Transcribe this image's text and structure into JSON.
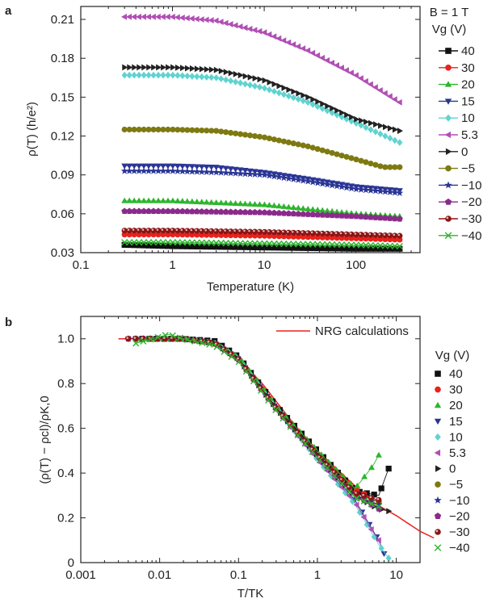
{
  "chart_data": [
    {
      "panel_label": "a",
      "type": "scatter",
      "xlabel": "Temperature (K)",
      "ylabel": "ρ(T) (h/e²)",
      "x_scale": "log",
      "xlim": [
        0.1,
        500
      ],
      "ylim": [
        0.03,
        0.22
      ],
      "x_ticks": [
        {
          "value": 0.1,
          "label": "0.1"
        },
        {
          "value": 1,
          "label": "1"
        },
        {
          "value": 10,
          "label": "10"
        },
        {
          "value": 100,
          "label": "100"
        }
      ],
      "y_ticks": [
        {
          "value": 0.03,
          "label": "0.03"
        },
        {
          "value": 0.06,
          "label": "0.06"
        },
        {
          "value": 0.09,
          "label": "0.09"
        },
        {
          "value": 0.12,
          "label": "0.12"
        },
        {
          "value": 0.15,
          "label": "0.15"
        },
        {
          "value": 0.18,
          "label": "0.18"
        },
        {
          "value": 0.21,
          "label": "0.21"
        }
      ],
      "legend_header": "B = 1 T",
      "legend_title": "Vg (V)",
      "legend_position": "right",
      "grid": false,
      "series": [
        {
          "name": "40",
          "color": "#111111",
          "marker": "square",
          "points": [
            [
              0.3,
              0.036
            ],
            [
              1,
              0.035
            ],
            [
              10,
              0.034
            ],
            [
              100,
              0.033
            ],
            [
              300,
              0.033
            ]
          ]
        },
        {
          "name": "30",
          "color": "#e8221c",
          "marker": "circle",
          "points": [
            [
              0.3,
              0.044
            ],
            [
              1,
              0.044
            ],
            [
              10,
              0.043
            ],
            [
              100,
              0.041
            ],
            [
              300,
              0.04
            ]
          ]
        },
        {
          "name": "20",
          "color": "#2db52d",
          "marker": "triangle-up",
          "points": [
            [
              0.3,
              0.07
            ],
            [
              1,
              0.07
            ],
            [
              10,
              0.067
            ],
            [
              100,
              0.06
            ],
            [
              300,
              0.058
            ]
          ]
        },
        {
          "name": "15",
          "color": "#2a3595",
          "marker": "triangle-down",
          "points": [
            [
              0.3,
              0.097
            ],
            [
              1,
              0.097
            ],
            [
              3,
              0.096
            ],
            [
              10,
              0.092
            ],
            [
              30,
              0.087
            ],
            [
              100,
              0.081
            ],
            [
              300,
              0.078
            ]
          ]
        },
        {
          "name": "10",
          "color": "#5fd3d0",
          "marker": "diamond",
          "points": [
            [
              0.3,
              0.167
            ],
            [
              1,
              0.167
            ],
            [
              3,
              0.165
            ],
            [
              10,
              0.157
            ],
            [
              30,
              0.146
            ],
            [
              100,
              0.13
            ],
            [
              300,
              0.115
            ]
          ]
        },
        {
          "name": "5.3",
          "color": "#b04fb5",
          "marker": "triangle-left",
          "points": [
            [
              0.3,
              0.212
            ],
            [
              1,
              0.212
            ],
            [
              3,
              0.209
            ],
            [
              10,
              0.2
            ],
            [
              30,
              0.186
            ],
            [
              100,
              0.167
            ],
            [
              300,
              0.146
            ]
          ]
        },
        {
          "name": "0",
          "color": "#222222",
          "marker": "triangle-right",
          "points": [
            [
              0.3,
              0.173
            ],
            [
              1,
              0.173
            ],
            [
              3,
              0.171
            ],
            [
              10,
              0.163
            ],
            [
              30,
              0.15
            ],
            [
              100,
              0.133
            ],
            [
              300,
              0.124
            ]
          ]
        },
        {
          "name": "−5",
          "color": "#7e7a12",
          "marker": "circle",
          "points": [
            [
              0.3,
              0.125
            ],
            [
              1,
              0.125
            ],
            [
              3,
              0.124
            ],
            [
              10,
              0.119
            ],
            [
              30,
              0.112
            ],
            [
              100,
              0.102
            ],
            [
              200,
              0.096
            ],
            [
              300,
              0.096
            ]
          ]
        },
        {
          "name": "−10",
          "color": "#2a3595",
          "marker": "star",
          "points": [
            [
              0.3,
              0.093
            ],
            [
              1,
              0.093
            ],
            [
              3,
              0.092
            ],
            [
              10,
              0.09
            ],
            [
              30,
              0.085
            ],
            [
              100,
              0.079
            ],
            [
              300,
              0.076
            ]
          ]
        },
        {
          "name": "−20",
          "color": "#8a2a8a",
          "marker": "pentagon",
          "points": [
            [
              0.3,
              0.062
            ],
            [
              1,
              0.062
            ],
            [
              10,
              0.061
            ],
            [
              100,
              0.058
            ],
            [
              300,
              0.056
            ]
          ]
        },
        {
          "name": "−30",
          "color": "#8c1414",
          "marker": "circle-dot",
          "points": [
            [
              0.3,
              0.047
            ],
            [
              1,
              0.047
            ],
            [
              10,
              0.046
            ],
            [
              100,
              0.044
            ],
            [
              300,
              0.043
            ]
          ]
        },
        {
          "name": "−40",
          "color": "#2db52d",
          "marker": "x",
          "points": [
            [
              0.3,
              0.038
            ],
            [
              1,
              0.038
            ],
            [
              10,
              0.037
            ],
            [
              100,
              0.036
            ],
            [
              300,
              0.035
            ]
          ]
        }
      ]
    },
    {
      "panel_label": "b",
      "type": "scatter",
      "xlabel": "T/TK",
      "ylabel": "(ρ(T) − ρcl)/ρK,0",
      "x_scale": "log",
      "xlim": [
        0.001,
        20
      ],
      "ylim": [
        0,
        1.1
      ],
      "x_ticks": [
        {
          "value": 0.001,
          "label": "0.001"
        },
        {
          "value": 0.01,
          "label": "0.01"
        },
        {
          "value": 0.1,
          "label": "0.1"
        },
        {
          "value": 1,
          "label": "1"
        },
        {
          "value": 10,
          "label": "10"
        }
      ],
      "y_ticks": [
        {
          "value": 0,
          "label": "0"
        },
        {
          "value": 0.2,
          "label": "0.2"
        },
        {
          "value": 0.4,
          "label": "0.4"
        },
        {
          "value": 0.6,
          "label": "0.6"
        },
        {
          "value": 0.8,
          "label": "0.8"
        },
        {
          "value": 1.0,
          "label": "1.0"
        }
      ],
      "legend_title": "Vg (V)",
      "legend_position": "right",
      "grid": false,
      "nrg_curve": {
        "name": "NRG calculations",
        "color": "#e8221c",
        "points": [
          [
            0.003,
            1.0
          ],
          [
            0.01,
            1.0
          ],
          [
            0.03,
            0.99
          ],
          [
            0.06,
            0.96
          ],
          [
            0.1,
            0.91
          ],
          [
            0.2,
            0.8
          ],
          [
            0.5,
            0.62
          ],
          [
            1,
            0.5
          ],
          [
            2,
            0.4
          ],
          [
            5,
            0.27
          ],
          [
            10,
            0.21
          ],
          [
            20,
            0.14
          ],
          [
            30,
            0.11
          ]
        ]
      },
      "series": [
        {
          "name": "40",
          "color": "#111111",
          "marker": "square",
          "points": [
            [
              0.006,
              1.0
            ],
            [
              0.02,
              1.0
            ],
            [
              0.05,
              0.99
            ],
            [
              0.1,
              0.92
            ],
            [
              0.3,
              0.7
            ],
            [
              1,
              0.5
            ],
            [
              3,
              0.32
            ],
            [
              6,
              0.3
            ],
            [
              8,
              0.42
            ]
          ]
        },
        {
          "name": "30",
          "color": "#e8221c",
          "marker": "circle",
          "points": [
            [
              0.005,
              1.0
            ],
            [
              0.02,
              1.0
            ],
            [
              0.05,
              0.98
            ],
            [
              0.1,
              0.91
            ],
            [
              0.3,
              0.69
            ],
            [
              1,
              0.49
            ],
            [
              3,
              0.33
            ],
            [
              6,
              0.27
            ]
          ]
        },
        {
          "name": "20",
          "color": "#2db52d",
          "marker": "triangle-up",
          "points": [
            [
              0.006,
              1.0
            ],
            [
              0.02,
              1.0
            ],
            [
              0.05,
              0.98
            ],
            [
              0.1,
              0.92
            ],
            [
              0.3,
              0.7
            ],
            [
              1,
              0.5
            ],
            [
              3,
              0.33
            ],
            [
              5,
              0.43
            ],
            [
              6,
              0.48
            ]
          ]
        },
        {
          "name": "15",
          "color": "#2a3595",
          "marker": "triangle-down",
          "points": [
            [
              0.004,
              1.0
            ],
            [
              0.02,
              1.0
            ],
            [
              0.05,
              0.98
            ],
            [
              0.1,
              0.91
            ],
            [
              0.3,
              0.69
            ],
            [
              1,
              0.47
            ],
            [
              3,
              0.28
            ],
            [
              6,
              0.1
            ],
            [
              7,
              0.04
            ]
          ]
        },
        {
          "name": "10",
          "color": "#5fd3d0",
          "marker": "diamond",
          "points": [
            [
              0.004,
              1.0
            ],
            [
              0.02,
              1.0
            ],
            [
              0.05,
              0.98
            ],
            [
              0.1,
              0.91
            ],
            [
              0.3,
              0.69
            ],
            [
              1,
              0.46
            ],
            [
              3,
              0.26
            ],
            [
              6,
              0.08
            ],
            [
              8,
              0.02
            ]
          ]
        },
        {
          "name": "5.3",
          "color": "#b04fb5",
          "marker": "triangle-left",
          "points": [
            [
              0.004,
              1.0
            ],
            [
              0.02,
              1.0
            ],
            [
              0.05,
              0.98
            ],
            [
              0.1,
              0.9
            ],
            [
              0.3,
              0.68
            ],
            [
              1,
              0.46
            ],
            [
              3,
              0.27
            ],
            [
              5,
              0.14
            ],
            [
              6,
              0.1
            ]
          ]
        },
        {
          "name": "0",
          "color": "#222222",
          "marker": "triangle-right",
          "points": [
            [
              0.005,
              1.0
            ],
            [
              0.02,
              1.0
            ],
            [
              0.05,
              0.98
            ],
            [
              0.1,
              0.91
            ],
            [
              0.3,
              0.69
            ],
            [
              1,
              0.48
            ],
            [
              3,
              0.3
            ],
            [
              6,
              0.24
            ],
            [
              8,
              0.23
            ]
          ]
        },
        {
          "name": "−5",
          "color": "#7e7a12",
          "marker": "circle",
          "points": [
            [
              0.005,
              1.0
            ],
            [
              0.02,
              1.0
            ],
            [
              0.05,
              0.98
            ],
            [
              0.1,
              0.91
            ],
            [
              0.3,
              0.69
            ],
            [
              1,
              0.48
            ],
            [
              3,
              0.31
            ],
            [
              6,
              0.27
            ]
          ]
        },
        {
          "name": "−10",
          "color": "#2a3595",
          "marker": "star",
          "points": [
            [
              0.005,
              1.0
            ],
            [
              0.02,
              1.0
            ],
            [
              0.05,
              0.98
            ],
            [
              0.1,
              0.91
            ],
            [
              0.3,
              0.69
            ],
            [
              1,
              0.48
            ],
            [
              3,
              0.3
            ],
            [
              6,
              0.26
            ]
          ]
        },
        {
          "name": "−20",
          "color": "#8a2a8a",
          "marker": "pentagon",
          "points": [
            [
              0.004,
              1.0
            ],
            [
              0.02,
              1.0
            ],
            [
              0.05,
              0.98
            ],
            [
              0.1,
              0.91
            ],
            [
              0.3,
              0.69
            ],
            [
              1,
              0.48
            ],
            [
              3,
              0.3
            ],
            [
              6,
              0.24
            ]
          ]
        },
        {
          "name": "−30",
          "color": "#8c1414",
          "marker": "circle-dot",
          "points": [
            [
              0.004,
              1.0
            ],
            [
              0.02,
              1.0
            ],
            [
              0.05,
              0.98
            ],
            [
              0.1,
              0.91
            ],
            [
              0.3,
              0.69
            ],
            [
              1,
              0.48
            ],
            [
              3,
              0.31
            ],
            [
              6,
              0.28
            ]
          ]
        },
        {
          "name": "−40",
          "color": "#2db52d",
          "marker": "x",
          "points": [
            [
              0.005,
              0.98
            ],
            [
              0.013,
              1.02
            ],
            [
              0.02,
              1.0
            ],
            [
              0.05,
              0.97
            ],
            [
              0.1,
              0.9
            ],
            [
              0.3,
              0.68
            ],
            [
              1,
              0.47
            ],
            [
              3,
              0.29
            ],
            [
              6,
              0.25
            ]
          ]
        }
      ]
    }
  ]
}
